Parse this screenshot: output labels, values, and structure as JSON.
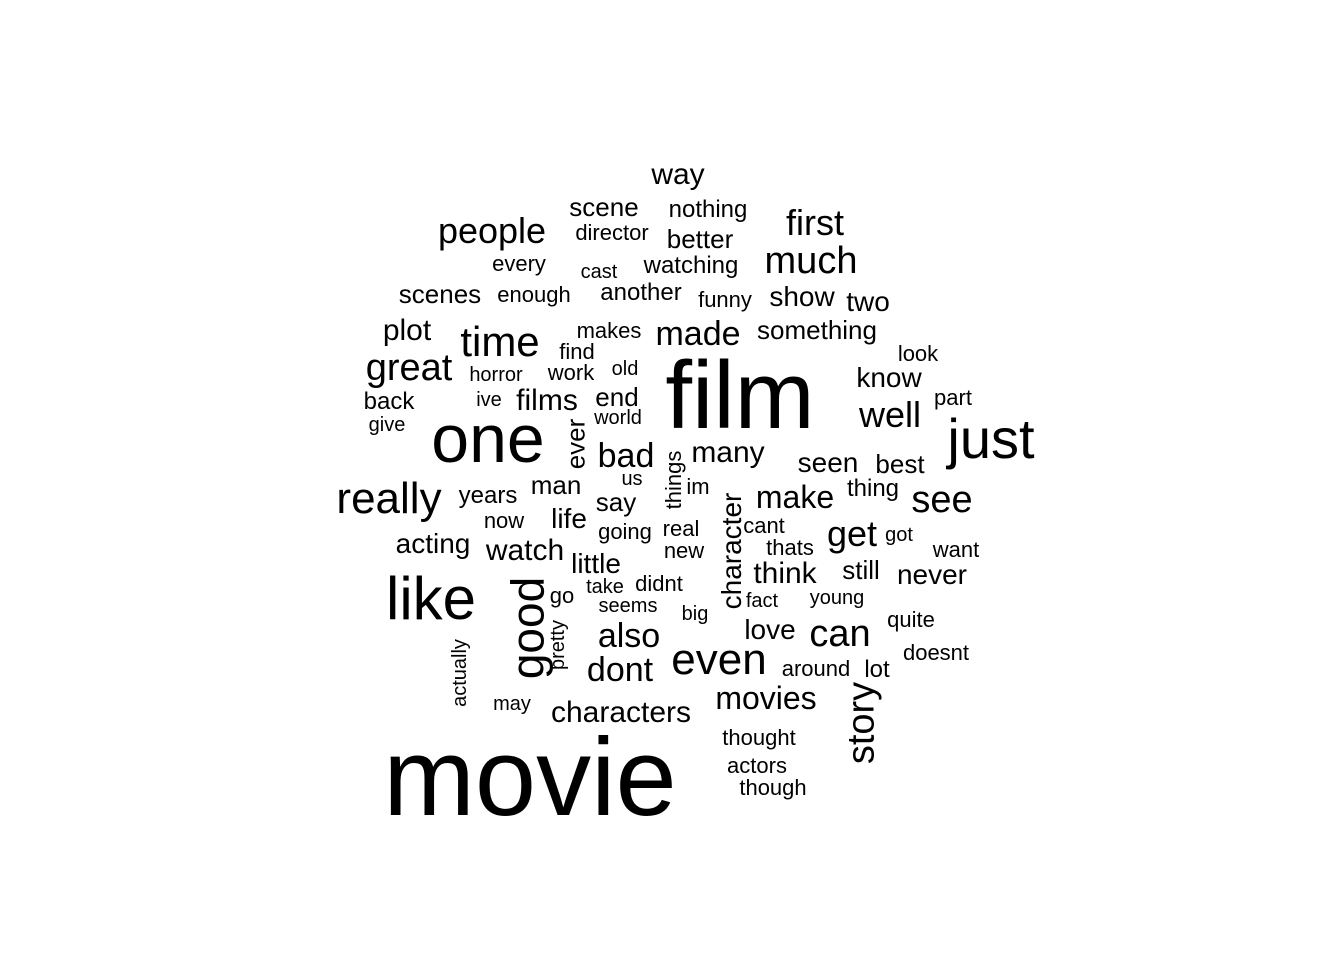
{
  "chart_data": {
    "type": "wordcloud",
    "words": [
      {
        "text": "movie"
      },
      {
        "text": "film"
      },
      {
        "text": "one"
      },
      {
        "text": "like"
      },
      {
        "text": "just"
      },
      {
        "text": "good"
      },
      {
        "text": "really"
      },
      {
        "text": "even"
      },
      {
        "text": "time"
      },
      {
        "text": "great"
      },
      {
        "text": "much"
      },
      {
        "text": "see"
      },
      {
        "text": "people"
      },
      {
        "text": "story"
      },
      {
        "text": "well"
      },
      {
        "text": "can"
      },
      {
        "text": "first"
      },
      {
        "text": "made"
      },
      {
        "text": "get"
      },
      {
        "text": "also"
      },
      {
        "text": "dont"
      },
      {
        "text": "characters"
      },
      {
        "text": "movies"
      },
      {
        "text": "bad"
      },
      {
        "text": "character"
      },
      {
        "text": "make"
      },
      {
        "text": "way"
      },
      {
        "text": "films"
      },
      {
        "text": "watch"
      },
      {
        "text": "think"
      },
      {
        "text": "many"
      },
      {
        "text": "plot"
      },
      {
        "text": "acting"
      },
      {
        "text": "never"
      },
      {
        "text": "seen"
      },
      {
        "text": "little"
      },
      {
        "text": "life"
      },
      {
        "text": "love"
      },
      {
        "text": "know"
      },
      {
        "text": "two"
      },
      {
        "text": "show"
      },
      {
        "text": "best"
      },
      {
        "text": "scene"
      },
      {
        "text": "scenes"
      },
      {
        "text": "say"
      },
      {
        "text": "better"
      },
      {
        "text": "something"
      },
      {
        "text": "end"
      },
      {
        "text": "man"
      },
      {
        "text": "ever"
      },
      {
        "text": "still"
      },
      {
        "text": "years"
      },
      {
        "text": "nothing"
      },
      {
        "text": "watching"
      },
      {
        "text": "another"
      },
      {
        "text": "back"
      },
      {
        "text": "things"
      },
      {
        "text": "thing"
      },
      {
        "text": "director"
      },
      {
        "text": "every"
      },
      {
        "text": "makes"
      },
      {
        "text": "real"
      },
      {
        "text": "going"
      },
      {
        "text": "doesnt"
      },
      {
        "text": "look"
      },
      {
        "text": "work"
      },
      {
        "text": "find"
      },
      {
        "text": "funny"
      },
      {
        "text": "enough"
      },
      {
        "text": "now"
      },
      {
        "text": "want"
      },
      {
        "text": "didnt"
      },
      {
        "text": "new"
      },
      {
        "text": "actors"
      },
      {
        "text": "thought"
      },
      {
        "text": "though"
      },
      {
        "text": "around"
      },
      {
        "text": "im"
      },
      {
        "text": "cant"
      },
      {
        "text": "pretty"
      },
      {
        "text": "part"
      },
      {
        "text": "quite"
      },
      {
        "text": "young"
      },
      {
        "text": "thats"
      },
      {
        "text": "lot"
      },
      {
        "text": "actually"
      },
      {
        "text": "cast"
      },
      {
        "text": "go"
      },
      {
        "text": "horror"
      },
      {
        "text": "seems"
      },
      {
        "text": "world"
      },
      {
        "text": "old"
      },
      {
        "text": "take"
      },
      {
        "text": "fact"
      },
      {
        "text": "got"
      },
      {
        "text": "us"
      },
      {
        "text": "give"
      },
      {
        "text": "may"
      },
      {
        "text": "big"
      },
      {
        "text": "ive"
      }
    ]
  }
}
